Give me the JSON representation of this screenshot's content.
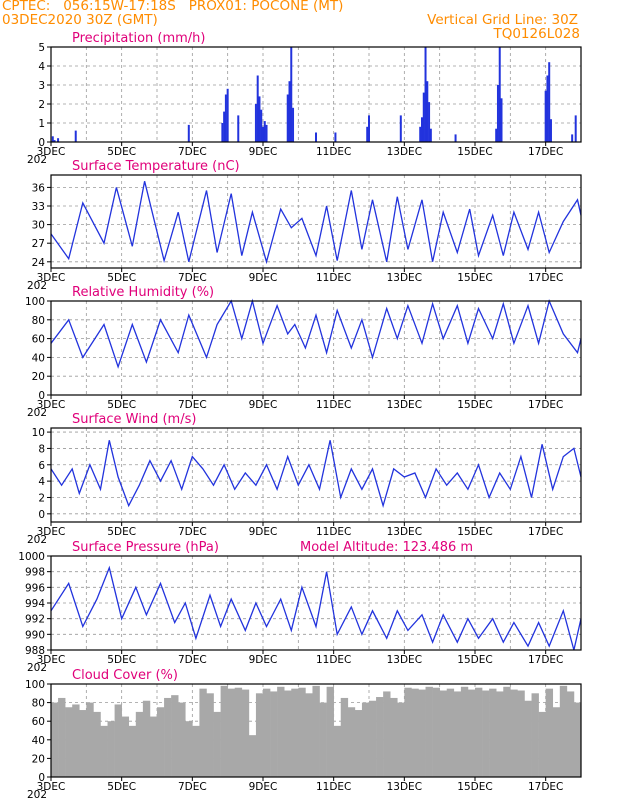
{
  "header": {
    "line1": "CPTEC:   056:15W-17:18S   PROX01: POCONE (MT)",
    "line2_left": "03DEC2020 30Z (GMT)",
    "line2_right": "Vertical Grid Line: 30Z",
    "line3_right": "TQ0126L028",
    "year_fragment": "202"
  },
  "colors": {
    "line": "#2233dd",
    "cloud": "#a8a8a8",
    "header": "#ff8c00",
    "title": "#e0007a",
    "grid": "#9a9a9a"
  },
  "x_ticks": [
    "3DEC",
    "5DEC",
    "7DEC",
    "9DEC",
    "11DEC",
    "13DEC",
    "15DEC",
    "17DEC"
  ],
  "chart_data": [
    {
      "type": "bar",
      "title": "Precipitation (mm/h)",
      "ylim": [
        0,
        5
      ],
      "yticks": [
        "0",
        "1",
        "2",
        "3",
        "4",
        "5"
      ],
      "x": [
        3.05,
        3.1,
        3.2,
        3.7,
        6.9,
        7.85,
        7.9,
        7.95,
        8.0,
        8.3,
        8.8,
        8.85,
        8.9,
        8.95,
        9.0,
        9.05,
        9.1,
        9.7,
        9.75,
        9.8,
        9.85,
        10.5,
        11.05,
        11.95,
        12.0,
        12.9,
        13.45,
        13.5,
        13.55,
        13.6,
        13.65,
        13.7,
        13.75,
        14.45,
        15.6,
        15.65,
        15.7,
        15.75,
        17.0,
        17.05,
        17.1,
        17.15,
        17.75,
        17.85
      ],
      "values": [
        0.3,
        0.1,
        0.2,
        0.6,
        0.9,
        1.0,
        1.6,
        2.5,
        2.8,
        1.4,
        2.0,
        3.5,
        2.4,
        1.7,
        0.8,
        1.1,
        0.9,
        2.5,
        3.2,
        5.0,
        1.8,
        0.5,
        0.5,
        0.8,
        1.4,
        1.4,
        0.8,
        1.3,
        2.6,
        5.0,
        3.2,
        2.1,
        0.7,
        0.4,
        0.7,
        3.0,
        5.0,
        2.3,
        2.7,
        3.5,
        4.2,
        1.2,
        0.4,
        1.4
      ]
    },
    {
      "type": "line",
      "title": "Surface Temperature (nC)",
      "ylim": [
        23,
        38
      ],
      "yticks": [
        "24",
        "27",
        "30",
        "33",
        "36"
      ],
      "x": [
        3,
        3.5,
        3.9,
        4.5,
        4.85,
        5.3,
        5.65,
        6.2,
        6.6,
        6.9,
        7.4,
        7.7,
        8.1,
        8.4,
        8.7,
        9.1,
        9.5,
        9.8,
        10.1,
        10.5,
        10.8,
        11.1,
        11.5,
        11.8,
        12.1,
        12.5,
        12.8,
        13.1,
        13.5,
        13.8,
        14.1,
        14.5,
        14.85,
        15.1,
        15.5,
        15.8,
        16.1,
        16.5,
        16.8,
        17.1,
        17.5,
        17.9,
        18.0
      ],
      "values": [
        28.5,
        24.5,
        33.5,
        27.0,
        36.0,
        26.5,
        37.0,
        24.2,
        32.0,
        24.0,
        35.5,
        25.5,
        35.0,
        25.0,
        32.0,
        24.0,
        32.5,
        29.5,
        31.0,
        25.0,
        33.0,
        24.2,
        35.5,
        26.0,
        34.0,
        24.0,
        34.5,
        26.0,
        34.0,
        24.0,
        32.0,
        25.5,
        32.5,
        25.0,
        31.5,
        25.0,
        32.0,
        26.0,
        32.0,
        25.5,
        30.5,
        34.0,
        31.5
      ]
    },
    {
      "type": "line",
      "title": "Relative Humidity (%)",
      "ylim": [
        0,
        100
      ],
      "yticks": [
        "0",
        "20",
        "40",
        "60",
        "80",
        "100"
      ],
      "x": [
        3,
        3.5,
        3.9,
        4.5,
        4.9,
        5.3,
        5.7,
        6.1,
        6.6,
        6.9,
        7.4,
        7.7,
        8.1,
        8.4,
        8.7,
        9.0,
        9.4,
        9.7,
        9.9,
        10.2,
        10.5,
        10.8,
        11.1,
        11.5,
        11.8,
        12.1,
        12.5,
        12.8,
        13.1,
        13.5,
        13.8,
        14.1,
        14.5,
        14.8,
        15.1,
        15.5,
        15.8,
        16.1,
        16.5,
        16.8,
        17.1,
        17.5,
        17.9,
        18.0
      ],
      "values": [
        55,
        80,
        40,
        75,
        30,
        75,
        35,
        80,
        45,
        85,
        40,
        75,
        100,
        60,
        100,
        55,
        95,
        65,
        75,
        50,
        85,
        45,
        90,
        50,
        80,
        40,
        92,
        60,
        95,
        55,
        97,
        60,
        95,
        55,
        92,
        60,
        97,
        55,
        95,
        55,
        100,
        65,
        45,
        60
      ]
    },
    {
      "type": "line",
      "title": "Surface Wind (m/s)",
      "ylim": [
        -1,
        10.5
      ],
      "yticks": [
        "0",
        "2",
        "4",
        "6",
        "8",
        "10"
      ],
      "x": [
        3,
        3.3,
        3.6,
        3.8,
        4.1,
        4.4,
        4.65,
        4.9,
        5.2,
        5.5,
        5.8,
        6.1,
        6.4,
        6.7,
        7.0,
        7.3,
        7.6,
        7.9,
        8.2,
        8.5,
        8.8,
        9.1,
        9.4,
        9.7,
        10.0,
        10.3,
        10.6,
        10.9,
        11.2,
        11.5,
        11.8,
        12.1,
        12.4,
        12.7,
        13.0,
        13.3,
        13.6,
        13.9,
        14.2,
        14.5,
        14.8,
        15.1,
        15.4,
        15.7,
        16.0,
        16.3,
        16.6,
        16.9,
        17.2,
        17.5,
        17.8,
        18.0
      ],
      "values": [
        5.5,
        3.5,
        5.5,
        2.5,
        6.0,
        3.0,
        9.0,
        4.5,
        1.0,
        3.5,
        6.5,
        4.0,
        6.5,
        3.0,
        7.0,
        5.5,
        3.5,
        6.0,
        3.0,
        5.0,
        3.5,
        6.0,
        3.0,
        7.0,
        3.5,
        6.0,
        3.0,
        9.0,
        2.0,
        5.5,
        3.0,
        5.5,
        1.0,
        5.5,
        4.5,
        5.0,
        2.0,
        5.5,
        3.5,
        5.0,
        3.0,
        6.0,
        2.0,
        5.0,
        3.0,
        7.0,
        2.0,
        8.5,
        3.0,
        7.0,
        8.0,
        4.5
      ]
    },
    {
      "type": "line",
      "title": "Surface Pressure (hPa)",
      "annotation": "Model Altitude: 123.486 m",
      "ylim": [
        988,
        1000
      ],
      "yticks": [
        "988",
        "990",
        "992",
        "994",
        "996",
        "998",
        "1000"
      ],
      "x": [
        3,
        3.5,
        3.9,
        4.3,
        4.65,
        5.0,
        5.4,
        5.7,
        6.1,
        6.5,
        6.8,
        7.1,
        7.5,
        7.8,
        8.1,
        8.5,
        8.8,
        9.1,
        9.5,
        9.8,
        10.1,
        10.5,
        10.8,
        11.1,
        11.5,
        11.8,
        12.1,
        12.5,
        12.8,
        13.1,
        13.5,
        13.8,
        14.1,
        14.5,
        14.8,
        15.1,
        15.5,
        15.8,
        16.1,
        16.5,
        16.8,
        17.1,
        17.5,
        17.8,
        18.0
      ],
      "values": [
        993.0,
        996.5,
        991.0,
        994.5,
        998.5,
        992.0,
        996.0,
        992.5,
        996.5,
        991.5,
        994.0,
        989.5,
        995.0,
        991.0,
        994.5,
        990.5,
        994.0,
        991.0,
        994.5,
        990.5,
        996.0,
        991.0,
        998.0,
        990.0,
        993.5,
        990.0,
        993.0,
        989.5,
        993.0,
        990.5,
        992.5,
        989.0,
        992.5,
        989.0,
        992.0,
        989.5,
        992.0,
        989.0,
        991.5,
        988.5,
        991.5,
        988.5,
        993.0,
        988.0,
        992.0
      ]
    },
    {
      "type": "area",
      "title": "Cloud Cover (%)",
      "ylim": [
        0,
        100
      ],
      "yticks": [
        "0",
        "20",
        "40",
        "60",
        "80",
        "100"
      ],
      "x": [
        3.0,
        3.2,
        3.4,
        3.6,
        3.8,
        4.0,
        4.2,
        4.4,
        4.6,
        4.8,
        5.0,
        5.2,
        5.4,
        5.6,
        5.8,
        6.0,
        6.2,
        6.4,
        6.6,
        6.8,
        7.0,
        7.2,
        7.4,
        7.6,
        7.8,
        8.0,
        8.2,
        8.4,
        8.6,
        8.8,
        9.0,
        9.2,
        9.4,
        9.6,
        9.8,
        10.0,
        10.2,
        10.4,
        10.6,
        10.8,
        11.0,
        11.2,
        11.4,
        11.6,
        11.8,
        12.0,
        12.2,
        12.4,
        12.6,
        12.8,
        13.0,
        13.2,
        13.4,
        13.6,
        13.8,
        14.0,
        14.2,
        14.4,
        14.6,
        14.8,
        15.0,
        15.2,
        15.4,
        15.6,
        15.8,
        16.0,
        16.2,
        16.4,
        16.6,
        16.8,
        17.0,
        17.2,
        17.4,
        17.6,
        17.8,
        18.0
      ],
      "values": [
        80,
        85,
        75,
        78,
        72,
        80,
        70,
        55,
        60,
        78,
        65,
        55,
        70,
        82,
        65,
        75,
        85,
        88,
        80,
        60,
        55,
        95,
        90,
        70,
        98,
        95,
        96,
        94,
        45,
        90,
        95,
        92,
        97,
        93,
        95,
        96,
        90,
        98,
        80,
        97,
        55,
        85,
        75,
        72,
        80,
        82,
        86,
        92,
        85,
        80,
        96,
        95,
        94,
        97,
        96,
        93,
        95,
        92,
        97,
        94,
        96,
        93,
        95,
        92,
        97,
        94,
        93,
        82,
        90,
        70,
        95,
        75,
        98,
        92,
        80,
        95
      ]
    }
  ]
}
